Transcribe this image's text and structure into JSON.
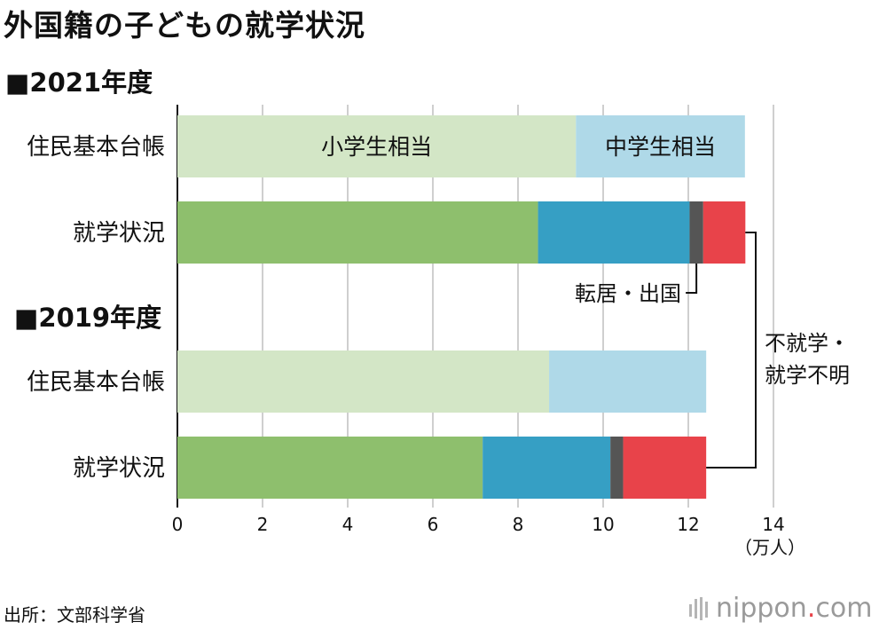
{
  "title": "外国籍の子どもの就学状況",
  "source": "出所：文部科学省",
  "logo": {
    "name": "nippon",
    "dot": ".",
    "suffix": "com"
  },
  "colors": {
    "elem_registry": "#d3e6c6",
    "junior_registry": "#afd9e8",
    "elem_enrolled": "#8ebf6d",
    "junior_enrolled": "#369fc4",
    "moved": "#555555",
    "not_enrolled": "#e8434a",
    "grid": "#cfcfcf"
  },
  "chart_data": {
    "type": "bar",
    "orientation": "horizontal",
    "stacked": true,
    "unit": "（万人）",
    "xlim": [
      0,
      14
    ],
    "xticks": [
      0,
      2,
      4,
      6,
      8,
      10,
      12,
      14
    ],
    "grid": true,
    "groups": [
      {
        "heading": "■2021年度",
        "bars": [
          {
            "label": "住民基本台帳",
            "segments": [
              {
                "name": "小学生相当",
                "value": 9.36,
                "color": "elem_registry"
              },
              {
                "name": "中学生相当",
                "value": 3.97,
                "color": "junior_registry"
              }
            ]
          },
          {
            "label": "就学状況",
            "segments": [
              {
                "value": 8.47,
                "color": "elem_enrolled"
              },
              {
                "value": 3.56,
                "color": "junior_enrolled"
              },
              {
                "value": 0.32,
                "color": "moved"
              },
              {
                "value": 0.99,
                "color": "not_enrolled"
              }
            ]
          }
        ]
      },
      {
        "heading": "■2019年度",
        "bars": [
          {
            "label": "住民基本台帳",
            "segments": [
              {
                "value": 8.73,
                "color": "elem_registry"
              },
              {
                "value": 3.69,
                "color": "junior_registry"
              }
            ]
          },
          {
            "label": "就学状況",
            "segments": [
              {
                "value": 7.17,
                "color": "elem_enrolled"
              },
              {
                "value": 3.0,
                "color": "junior_enrolled"
              },
              {
                "value": 0.3,
                "color": "moved"
              },
              {
                "value": 1.95,
                "color": "not_enrolled"
              }
            ]
          }
        ]
      }
    ],
    "annotations": {
      "moved": "転居・出国",
      "not_enrolled_line1": "不就学・",
      "not_enrolled_line2": "就学不明"
    }
  }
}
